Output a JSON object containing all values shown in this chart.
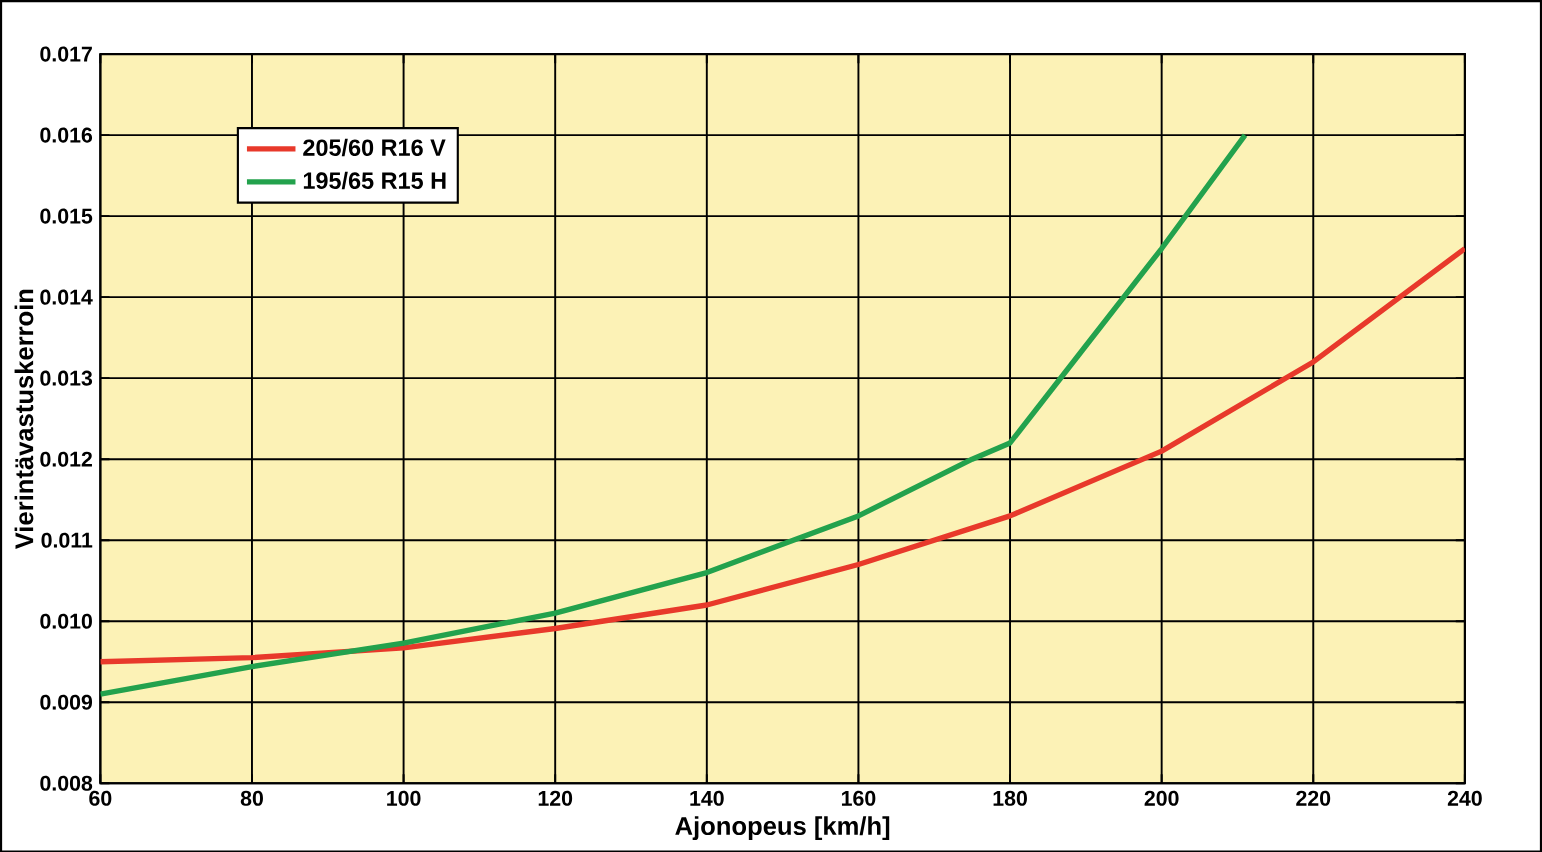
{
  "chart_data": {
    "type": "line",
    "xlabel": "Ajonopeus [km/h]",
    "ylabel": "Vierintävastuskerroin",
    "xlim": [
      60,
      240
    ],
    "xticks": [
      60,
      80,
      100,
      120,
      140,
      160,
      180,
      200,
      220,
      240
    ],
    "ylim": [
      0.008,
      0.017
    ],
    "yticks": [
      {
        "value": 0.008,
        "label": "0.008"
      },
      {
        "value": 0.009,
        "label": "0.009"
      },
      {
        "value": 0.01,
        "label": "0.010"
      },
      {
        "value": 0.011,
        "label": "0.011"
      },
      {
        "value": 0.012,
        "label": "0.012"
      },
      {
        "value": 0.013,
        "label": "0.013"
      },
      {
        "value": 0.014,
        "label": "0.014"
      },
      {
        "value": 0.015,
        "label": "0.015"
      },
      {
        "value": 0.016,
        "label": "0.016"
      },
      {
        "value": 0.017,
        "label": "0.017"
      }
    ],
    "grid": true,
    "legend": "top left",
    "marker": "none",
    "line_style": "solid",
    "series": [
      {
        "name": "205/60 R16 V",
        "color": "#e8392b",
        "x": [
          60,
          80,
          100,
          120,
          140,
          160,
          180,
          200,
          220,
          240
        ],
        "values": [
          0.0095,
          0.00955,
          0.00967,
          0.00991,
          0.0102,
          0.0107,
          0.0113,
          0.0121,
          0.0132,
          0.0146
        ]
      },
      {
        "name": "195/65 R15 H",
        "color": "#23a24d",
        "x": [
          60,
          80,
          100,
          120,
          140,
          160,
          175,
          180,
          190,
          200,
          211
        ],
        "values": [
          0.0091,
          0.00944,
          0.00973,
          0.0101,
          0.0106,
          0.0113,
          0.012,
          0.0122,
          0.0134,
          0.0146,
          0.016
        ]
      }
    ]
  }
}
